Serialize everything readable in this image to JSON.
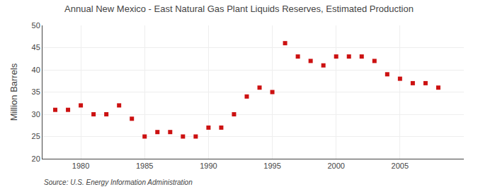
{
  "chart_data": {
    "type": "scatter",
    "title": "Annual New Mexico - East Natural Gas Plant Liquids Reserves, Estimated Production",
    "ylabel": "Million Barrels",
    "annotations": [
      "Source: U.S. Energy Information Administration"
    ],
    "x": [
      1978,
      1979,
      1980,
      1981,
      1982,
      1983,
      1984,
      1985,
      1986,
      1987,
      1988,
      1989,
      1990,
      1991,
      1992,
      1993,
      1994,
      1995,
      1996,
      1997,
      1998,
      1999,
      2000,
      2001,
      2002,
      2003,
      2004,
      2005,
      2006,
      2007,
      2008
    ],
    "values": [
      31.0,
      31.0,
      32.0,
      30.0,
      30.0,
      32.0,
      29.0,
      25.0,
      26.0,
      26.0,
      25.0,
      25.0,
      27.0,
      27.0,
      30.0,
      34.0,
      36.0,
      35.0,
      46.0,
      43.0,
      42.0,
      41.0,
      43.0,
      43.0,
      43.0,
      42.0,
      39.0,
      38.0,
      37.0,
      37.0,
      36.0
    ],
    "color": "#cc1111",
    "marker": "square",
    "xlim": [
      1977,
      2010
    ],
    "ylim": [
      20,
      50
    ],
    "xticks": [
      1980,
      1985,
      1990,
      1995,
      2000,
      2005
    ],
    "yticks": [
      20,
      25,
      30,
      35,
      40,
      45,
      50
    ],
    "grid": true
  }
}
